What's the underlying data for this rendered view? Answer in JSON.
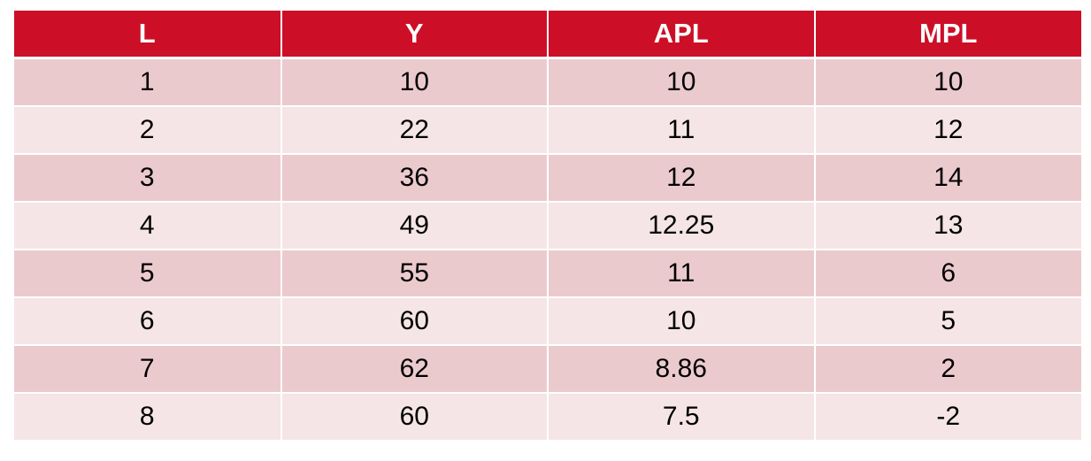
{
  "table": {
    "headers": [
      "L",
      "Y",
      "APL",
      "MPL"
    ],
    "rows": [
      [
        "1",
        "10",
        "10",
        "10"
      ],
      [
        "2",
        "22",
        "11",
        "12"
      ],
      [
        "3",
        "36",
        "12",
        "14"
      ],
      [
        "4",
        "49",
        "12.25",
        "13"
      ],
      [
        "5",
        "55",
        "11",
        "6"
      ],
      [
        "6",
        "60",
        "10",
        "5"
      ],
      [
        "7",
        "62",
        "8.86",
        "2"
      ],
      [
        "8",
        "60",
        "7.5",
        "-2"
      ]
    ]
  },
  "colors": {
    "header_bg": "#cc0f27",
    "header_text": "#ffffff",
    "row_odd_bg": "#ebcace",
    "row_even_bg": "#f5e5e6"
  }
}
